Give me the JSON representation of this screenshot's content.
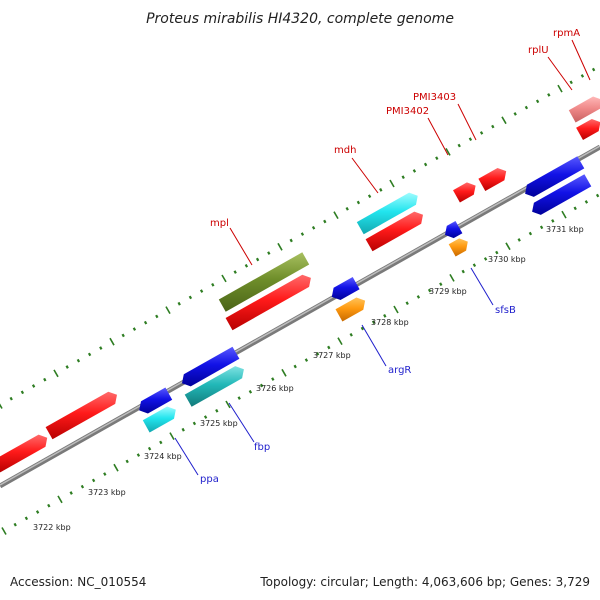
{
  "title": "Proteus mirabilis HI4320, complete genome",
  "footer": {
    "accession": "Accession: NC_010554",
    "summary": "Topology: circular; Length: 4,063,606 bp; Genes: 3,729"
  },
  "colors": {
    "backbone": "#8a8a8a",
    "tick": "#2e7d22",
    "label_red": "#cc0000",
    "label_blue": "#1f1fcc"
  },
  "kbp_labels": [
    "3722 kbp",
    "3723 kbp",
    "3724 kbp",
    "3725 kbp",
    "3726 kbp",
    "3727 kbp",
    "3728 kbp",
    "3729 kbp",
    "3730 kbp",
    "3731 kbp"
  ],
  "gene_labels": {
    "mpl": "mpl",
    "mdh": "mdh",
    "pmi3402": "PMI3402",
    "pmi3403": "PMI3403",
    "rplU": "rplU",
    "rpmA": "rpmA",
    "ppa": "ppa",
    "fbp": "fbp",
    "argR": "argR",
    "sfsB": "sfsB"
  }
}
